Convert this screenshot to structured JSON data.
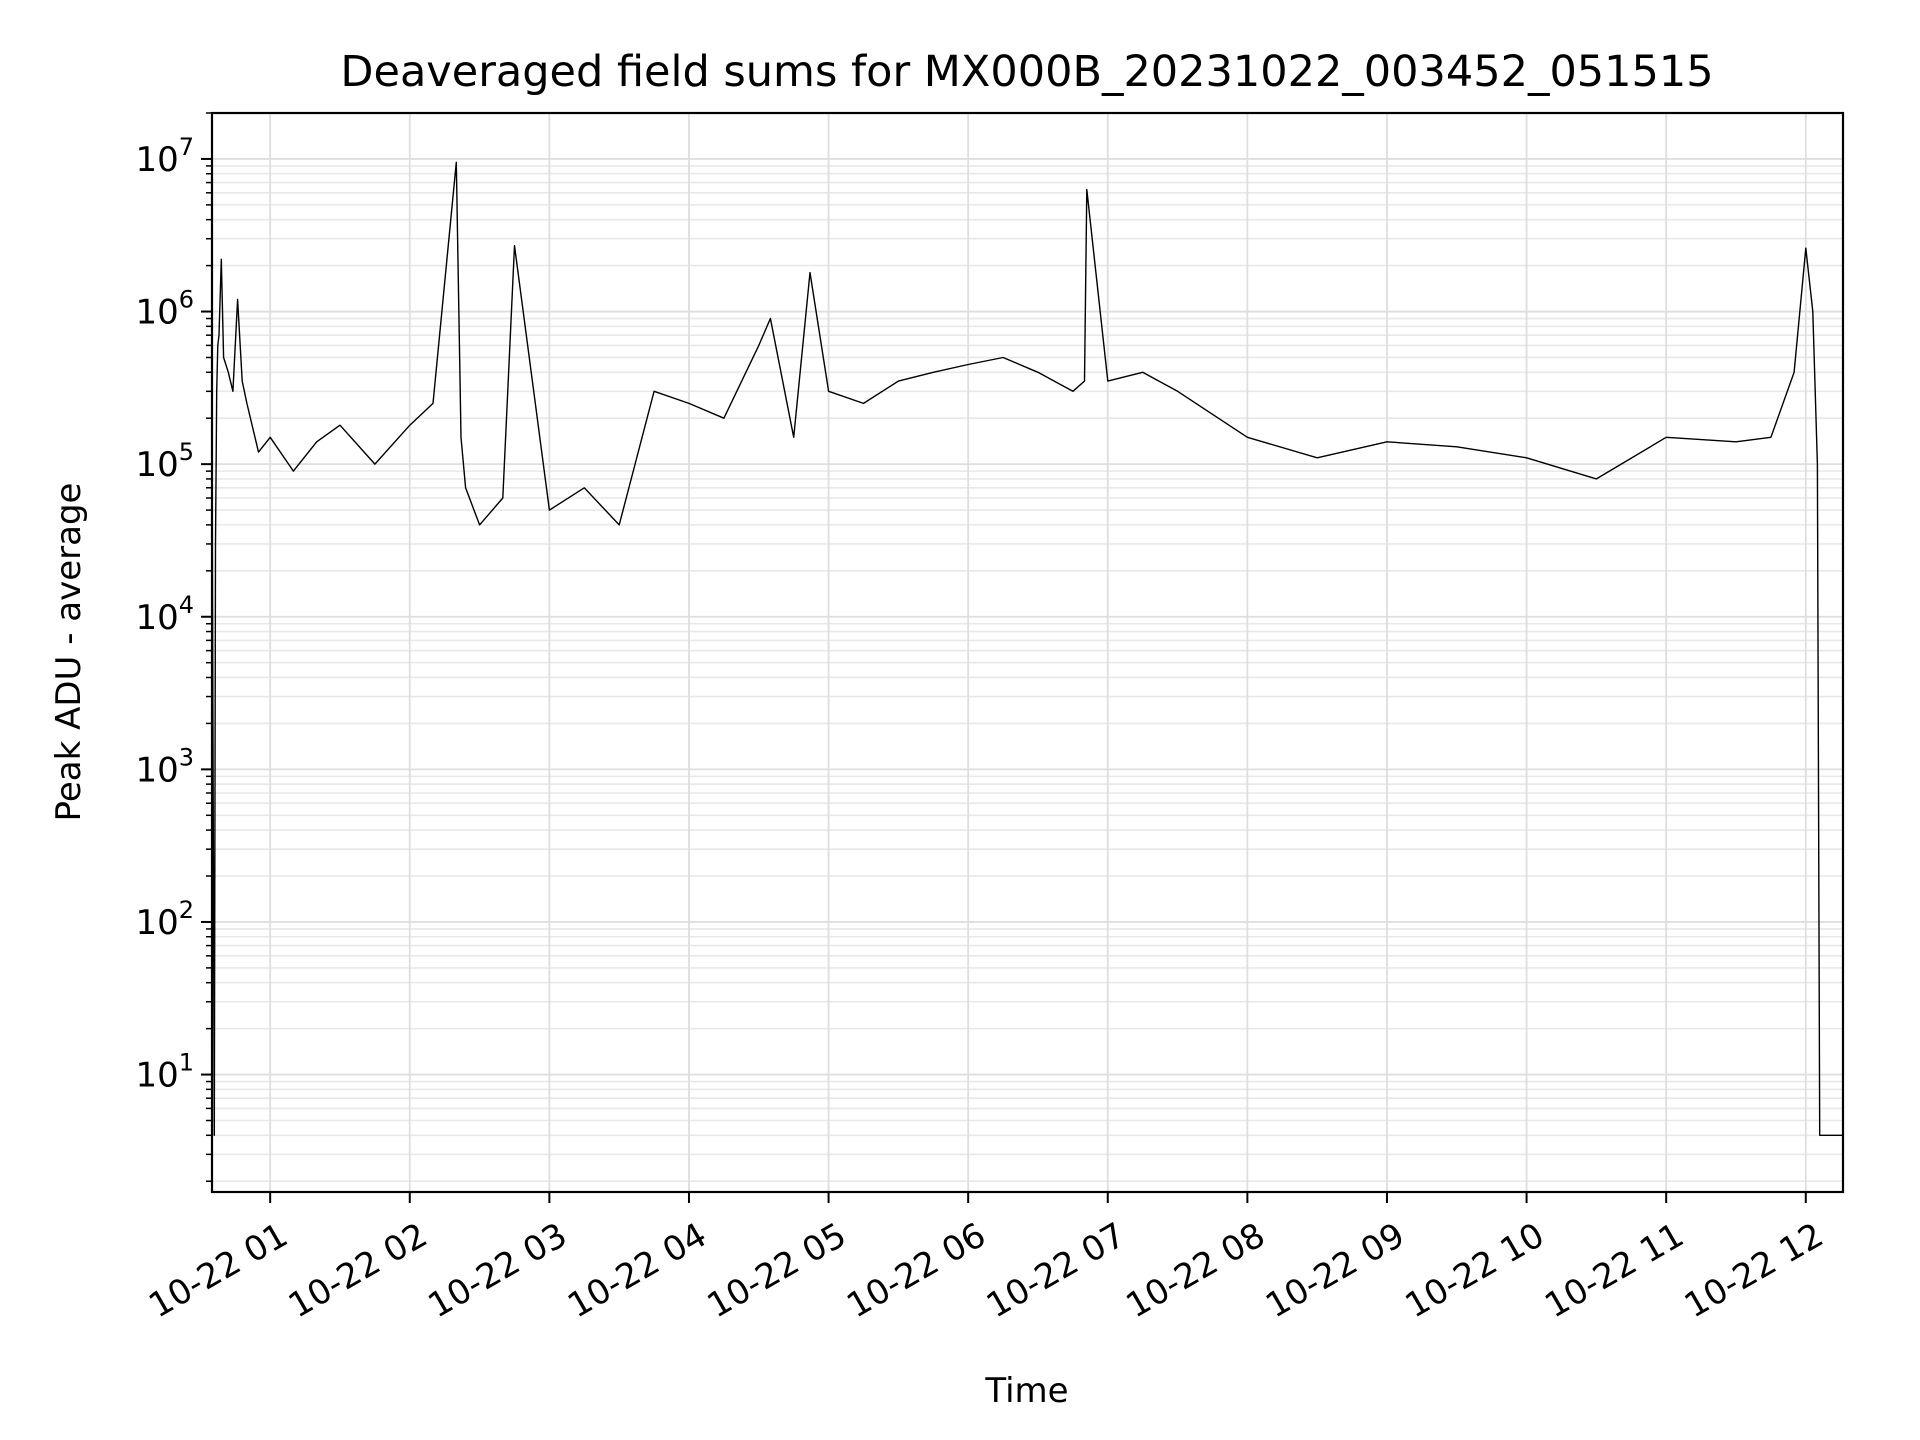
{
  "chart_data": {
    "type": "line",
    "title": "Deaveraged field sums for MX000B_20231022_003452_051515",
    "xlabel": "Time",
    "ylabel": "Peak ADU - average",
    "y_scale": "log",
    "ylim": [
      1.7,
      20000000
    ],
    "xlim": [
      "2023-10-22 00:35:00",
      "2023-10-22 12:16:00"
    ],
    "grid": "both (major and minor)",
    "line_color": "#000000",
    "x_ticks": [
      {
        "value": "2023-10-22 01:00",
        "label": "10-22 01"
      },
      {
        "value": "2023-10-22 02:00",
        "label": "10-22 02"
      },
      {
        "value": "2023-10-22 03:00",
        "label": "10-22 03"
      },
      {
        "value": "2023-10-22 04:00",
        "label": "10-22 04"
      },
      {
        "value": "2023-10-22 05:00",
        "label": "10-22 05"
      },
      {
        "value": "2023-10-22 06:00",
        "label": "10-22 06"
      },
      {
        "value": "2023-10-22 07:00",
        "label": "10-22 07"
      },
      {
        "value": "2023-10-22 08:00",
        "label": "10-22 08"
      },
      {
        "value": "2023-10-22 09:00",
        "label": "10-22 09"
      },
      {
        "value": "2023-10-22 10:00",
        "label": "10-22 10"
      },
      {
        "value": "2023-10-22 11:00",
        "label": "10-22 11"
      },
      {
        "value": "2023-10-22 12:00",
        "label": "10-22 12"
      }
    ],
    "y_ticks": [
      {
        "value": 10,
        "base": "10",
        "exp": "1"
      },
      {
        "value": 100,
        "base": "10",
        "exp": "2"
      },
      {
        "value": 1000,
        "base": "10",
        "exp": "3"
      },
      {
        "value": 10000,
        "base": "10",
        "exp": "4"
      },
      {
        "value": 100000,
        "base": "10",
        "exp": "5"
      },
      {
        "value": 1000000,
        "base": "10",
        "exp": "6"
      },
      {
        "value": 10000000,
        "base": "10",
        "exp": "7"
      }
    ],
    "series": [
      {
        "x": [
          "2023-10-22 00:35:00",
          "2023-10-22 00:36:00",
          "2023-10-22 00:36:30",
          "2023-10-22 00:37:00",
          "2023-10-22 00:37:30",
          "2023-10-22 00:38:00",
          "2023-10-22 00:39:00",
          "2023-10-22 00:40:00",
          "2023-10-22 00:42:00",
          "2023-10-22 00:44:00",
          "2023-10-22 00:46:00",
          "2023-10-22 00:48:00",
          "2023-10-22 00:50:00",
          "2023-10-22 00:55:00",
          "2023-10-22 01:00:00",
          "2023-10-22 01:10:00",
          "2023-10-22 01:20:00",
          "2023-10-22 01:30:00",
          "2023-10-22 01:45:00",
          "2023-10-22 02:00:00",
          "2023-10-22 02:10:00",
          "2023-10-22 02:20:00",
          "2023-10-22 02:22:00",
          "2023-10-22 02:24:00",
          "2023-10-22 02:30:00",
          "2023-10-22 02:40:00",
          "2023-10-22 02:45:00",
          "2023-10-22 03:00:00",
          "2023-10-22 03:15:00",
          "2023-10-22 03:30:00",
          "2023-10-22 03:45:00",
          "2023-10-22 04:00:00",
          "2023-10-22 04:15:00",
          "2023-10-22 04:30:00",
          "2023-10-22 04:35:00",
          "2023-10-22 04:45:00",
          "2023-10-22 04:52:00",
          "2023-10-22 05:00:00",
          "2023-10-22 05:15:00",
          "2023-10-22 05:30:00",
          "2023-10-22 05:45:00",
          "2023-10-22 06:00:00",
          "2023-10-22 06:15:00",
          "2023-10-22 06:30:00",
          "2023-10-22 06:45:00",
          "2023-10-22 06:50:00",
          "2023-10-22 06:51:00",
          "2023-10-22 07:00:00",
          "2023-10-22 07:15:00",
          "2023-10-22 07:30:00",
          "2023-10-22 08:00:00",
          "2023-10-22 08:30:00",
          "2023-10-22 09:00:00",
          "2023-10-22 09:30:00",
          "2023-10-22 10:00:00",
          "2023-10-22 10:30:00",
          "2023-10-22 11:00:00",
          "2023-10-22 11:30:00",
          "2023-10-22 11:45:00",
          "2023-10-22 11:55:00",
          "2023-10-22 12:00:00",
          "2023-10-22 12:03:00",
          "2023-10-22 12:05:00",
          "2023-10-22 12:06:00",
          "2023-10-22 12:10:00",
          "2023-10-22 12:16:00"
        ],
        "y": [
          150000,
          4,
          30000,
          300000,
          600000,
          700000,
          2200000,
          500000,
          400000,
          300000,
          1200000,
          350000,
          250000,
          120000,
          150000,
          90000,
          140000,
          180000,
          100000,
          180000,
          250000,
          9500000,
          150000,
          70000,
          40000,
          60000,
          2700000,
          50000,
          70000,
          40000,
          300000,
          250000,
          200000,
          600000,
          900000,
          150000,
          1800000,
          300000,
          250000,
          350000,
          400000,
          450000,
          500000,
          400000,
          300000,
          350000,
          6300000,
          350000,
          400000,
          300000,
          150000,
          110000,
          140000,
          130000,
          110000,
          80000,
          150000,
          140000,
          150000,
          400000,
          2600000,
          1000000,
          100000,
          4,
          4,
          4
        ]
      }
    ]
  }
}
